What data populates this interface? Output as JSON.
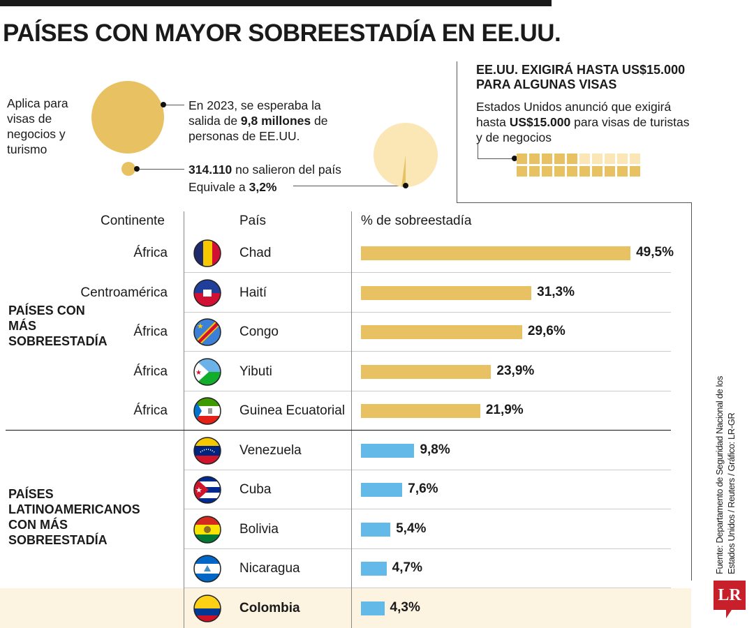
{
  "title": "PAÍSES CON MAYOR SOBREESTADÍA EN EE.UU.",
  "top": {
    "applies": "Aplica para visas de negocios y turismo",
    "expected_pre": "En 2023, se esperaba la salida de ",
    "expected_bold": "9,8 millones",
    "expected_post": " de personas de EE.UU.",
    "stayed_bold": "314.110",
    "stayed_post": " no salieron del país",
    "equiv_pre": "Equivale a ",
    "equiv_bold": "3,2%"
  },
  "visa_box": {
    "title": "EE.UU. EXIGIRÁ HASTA US$15.000 PARA ALGUNAS VISAS",
    "text_pre": "Estados Unidos anunció que exigirá hasta ",
    "text_bold": "US$15.000",
    "text_post": " para visas de turistas y de negocios"
  },
  "headers": {
    "continent": "Continente",
    "country": "País",
    "pct": "% de sobreestadía"
  },
  "groups": {
    "top": "PAÍSES CON MÁS SOBREESTADÍA",
    "latam": "PAÍSES LATINOAMERICANOS CON MÁS SOBREESTADÍA"
  },
  "source": "Fuente: Departamento de Seguridad Nacional de los Estados Unidos / Reuters / Gráfico: LR-GR",
  "logo": "LR",
  "colors": {
    "gold": "#E8C163",
    "pale": "#FBE7B5",
    "blue": "#63B9E8",
    "highlight": "#FDF3E1"
  },
  "chart_data": {
    "type": "bar",
    "title": "% de sobreestadía",
    "categories": [
      "Chad",
      "Haití",
      "Congo",
      "Yibuti",
      "Guinea Ecuatorial",
      "Venezuela",
      "Cuba",
      "Bolivia",
      "Nicaragua",
      "Colombia"
    ],
    "continents": [
      "África",
      "Centroamérica",
      "África",
      "África",
      "África",
      "",
      "",
      "",
      "",
      ""
    ],
    "values": [
      49.5,
      31.3,
      29.6,
      23.9,
      21.9,
      9.8,
      7.6,
      5.4,
      4.7,
      4.3
    ],
    "labels": [
      "49,5%",
      "31,3%",
      "29,6%",
      "23,9%",
      "21,9%",
      "9,8%",
      "7,6%",
      "5,4%",
      "4,7%",
      "4,3%"
    ],
    "groups": [
      "top",
      "top",
      "top",
      "top",
      "top",
      "latam",
      "latam",
      "latam",
      "latam",
      "latam"
    ],
    "ylim": [
      0,
      50
    ]
  }
}
